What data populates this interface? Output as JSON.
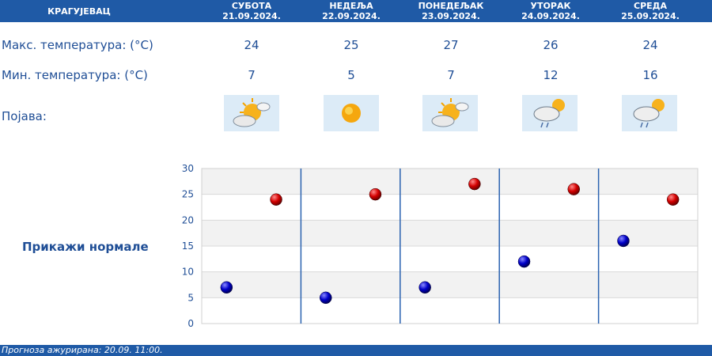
{
  "header": {
    "city": "КРАГУЈЕВАЦ",
    "days": [
      {
        "name": "СУБОТА",
        "date": "21.09.2024."
      },
      {
        "name": "НЕДЕЉА",
        "date": "22.09.2024."
      },
      {
        "name": "ПОНЕДЕЉАК",
        "date": "23.09.2024."
      },
      {
        "name": "УТОРАК",
        "date": "24.09.2024."
      },
      {
        "name": "СРЕДА",
        "date": "25.09.2024."
      }
    ]
  },
  "rows": {
    "max_label": "Макс. температура: (°C)",
    "min_label": "Мин. температура: (°C)",
    "phenomenon_label": "Појава:",
    "max_values": [
      "24",
      "25",
      "27",
      "26",
      "24"
    ],
    "min_values": [
      "7",
      "5",
      "7",
      "12",
      "16"
    ],
    "icons": [
      "sun-cloud-icon",
      "sun-icon",
      "sun-cloud-icon",
      "cloud-rain-sun-icon",
      "cloud-rain-sun-icon"
    ]
  },
  "normals_link": "Прикажи нормале",
  "footer": "Прогноза ажурирана:  20.09. 11:00.",
  "colors": {
    "brand": "#1f5aa6",
    "text": "#1f4e96",
    "max_marker": "#d40000",
    "min_marker": "#0000c8"
  },
  "chart_data": {
    "type": "scatter",
    "ylim": [
      0,
      30
    ],
    "yticks": [
      0,
      5,
      10,
      15,
      20,
      25,
      30
    ],
    "grid": true,
    "categories": [
      "21.09.2024.",
      "22.09.2024.",
      "23.09.2024.",
      "24.09.2024.",
      "25.09.2024."
    ],
    "series": [
      {
        "values": [
          24,
          25,
          27,
          26,
          24
        ]
      },
      {
        "values": [
          7,
          5,
          7,
          12,
          16
        ]
      }
    ]
  }
}
